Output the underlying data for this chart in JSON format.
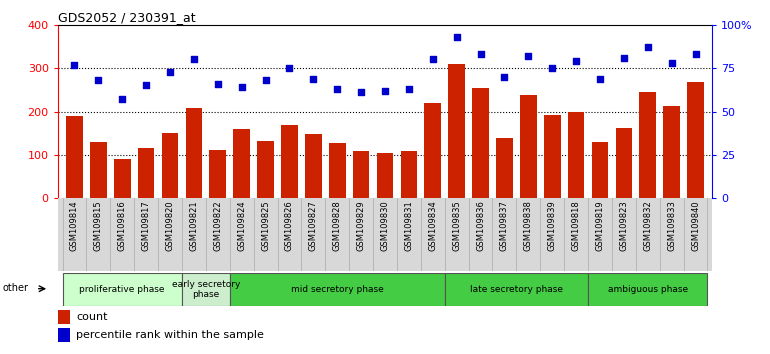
{
  "title": "GDS2052 / 230391_at",
  "samples": [
    "GSM109814",
    "GSM109815",
    "GSM109816",
    "GSM109817",
    "GSM109820",
    "GSM109821",
    "GSM109822",
    "GSM109824",
    "GSM109825",
    "GSM109826",
    "GSM109827",
    "GSM109828",
    "GSM109829",
    "GSM109830",
    "GSM109831",
    "GSM109834",
    "GSM109835",
    "GSM109836",
    "GSM109837",
    "GSM109838",
    "GSM109839",
    "GSM109818",
    "GSM109819",
    "GSM109823",
    "GSM109832",
    "GSM109833",
    "GSM109840"
  ],
  "counts": [
    190,
    130,
    90,
    115,
    150,
    208,
    112,
    160,
    133,
    170,
    148,
    128,
    110,
    105,
    108,
    220,
    310,
    255,
    140,
    237,
    192,
    200,
    130,
    162,
    245,
    212,
    268
  ],
  "percentiles": [
    77,
    68,
    57,
    65,
    73,
    80,
    66,
    64,
    68,
    75,
    69,
    63,
    61,
    62,
    63,
    80,
    93,
    83,
    70,
    82,
    75,
    79,
    69,
    81,
    87,
    78,
    83
  ],
  "bar_color": "#cc2200",
  "dot_color": "#0000cc",
  "phases": [
    {
      "label": "proliferative phase",
      "start": 0,
      "end": 5,
      "color": "#ccffcc"
    },
    {
      "label": "early secretory\nphase",
      "start": 5,
      "end": 7,
      "color": "#cceecc"
    },
    {
      "label": "mid secretory phase",
      "start": 7,
      "end": 16,
      "color": "#66dd66"
    },
    {
      "label": "late secretory phase",
      "start": 16,
      "end": 22,
      "color": "#66dd66"
    },
    {
      "label": "ambiguous phase",
      "start": 22,
      "end": 27,
      "color": "#66dd66"
    }
  ],
  "ylim_left": [
    0,
    400
  ],
  "ylim_right": [
    0,
    100
  ],
  "yticks_left": [
    0,
    100,
    200,
    300,
    400
  ],
  "yticks_right": [
    0,
    25,
    50,
    75,
    100
  ],
  "ytick_labels_right": [
    "0",
    "25",
    "50",
    "75",
    "100%"
  ],
  "legend_count_label": "count",
  "legend_pct_label": "percentile rank within the sample",
  "other_label": "other",
  "tick_area_color": "#d8d8d8"
}
